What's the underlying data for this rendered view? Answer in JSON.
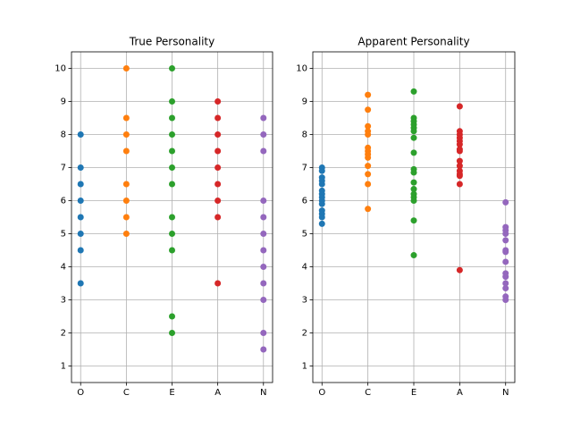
{
  "chart_data": [
    {
      "type": "scatter",
      "title": "True Personality",
      "categories": [
        "O",
        "C",
        "E",
        "A",
        "N"
      ],
      "colors": [
        "#1f77b4",
        "#ff7f0e",
        "#2ca02c",
        "#d62728",
        "#9467bd"
      ],
      "values": [
        [
          8,
          7,
          6.5,
          6,
          5.5,
          5,
          4.5,
          3.5
        ],
        [
          10,
          8.5,
          8,
          7.5,
          6.5,
          6,
          5.5,
          5
        ],
        [
          10,
          9,
          8.5,
          8,
          7.5,
          7,
          6.5,
          5.5,
          5,
          4.5,
          2.5,
          2
        ],
        [
          9,
          8.5,
          8,
          7.5,
          7,
          6.5,
          6,
          5.5,
          3.5
        ],
        [
          8.5,
          8,
          7.5,
          6,
          5.5,
          5,
          4.5,
          4,
          3.5,
          3,
          2,
          1.5
        ]
      ],
      "ylim": [
        0.5,
        10.5
      ],
      "yticks": [
        1,
        2,
        3,
        4,
        5,
        6,
        7,
        8,
        9,
        10
      ],
      "grid": true
    },
    {
      "type": "scatter",
      "title": "Apparent Personality",
      "categories": [
        "O",
        "C",
        "E",
        "A",
        "N"
      ],
      "colors": [
        "#1f77b4",
        "#ff7f0e",
        "#2ca02c",
        "#d62728",
        "#9467bd"
      ],
      "values": [
        [
          7.0,
          6.9,
          6.7,
          6.6,
          6.5,
          6.3,
          6.2,
          6.1,
          6.0,
          5.9,
          5.7,
          5.6,
          5.5,
          5.3
        ],
        [
          9.2,
          8.75,
          8.25,
          8.1,
          8.0,
          7.6,
          7.5,
          7.4,
          7.3,
          7.05,
          6.8,
          6.5,
          5.75
        ],
        [
          9.3,
          8.5,
          8.4,
          8.3,
          8.2,
          8.1,
          7.9,
          7.45,
          6.95,
          6.85,
          6.55,
          6.35,
          6.2,
          6.1,
          6.0,
          5.4,
          4.35
        ],
        [
          8.85,
          8.1,
          8.0,
          7.9,
          7.8,
          7.7,
          7.55,
          7.5,
          7.2,
          7.05,
          6.9,
          6.8,
          6.75,
          6.5,
          3.9
        ],
        [
          5.95,
          5.2,
          5.1,
          5.0,
          4.8,
          4.5,
          4.45,
          4.15,
          3.8,
          3.7,
          3.5,
          3.35,
          3.1,
          3.0
        ]
      ],
      "ylim": [
        0.5,
        10.5
      ],
      "yticks": [
        1,
        2,
        3,
        4,
        5,
        6,
        7,
        8,
        9,
        10
      ],
      "grid": true
    }
  ]
}
